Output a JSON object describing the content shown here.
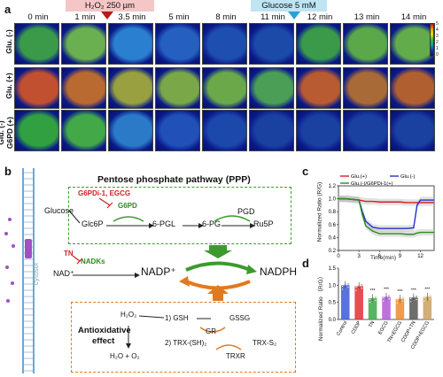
{
  "panel_a": {
    "label": "a",
    "h2o2_label": "H₂O₂ 250 µm",
    "glucose_label": "Glucose 5 mM",
    "time_labels": [
      "0 min",
      "1 min",
      "3.5 min",
      "5 min",
      "8 min",
      "11 min",
      "12 min",
      "13 min",
      "14 min"
    ],
    "row_labels": [
      "Glu. (-)",
      "Glu. (+)",
      "Glu. (-) G6PD (+)"
    ],
    "row_label_lines": [
      [
        "Glu. (-)"
      ],
      [
        "Glu. (+)"
      ],
      [
        "Glu. (-)",
        "G6PD (+)"
      ]
    ],
    "colorbar_ticks": [
      "5",
      "4",
      "3",
      "2",
      "1",
      "0"
    ],
    "colors": {
      "h2o2_box": "#f4c6c6",
      "glucose_box": "#bfe4f2",
      "arrow_red": "#b51c1c",
      "arrow_blue": "#2aa0d8"
    }
  },
  "panel_b": {
    "label": "b",
    "cytosol": "cytosol",
    "ppp_title": "Pentose phosphate pathway (PPP)",
    "glucose": "Glucose",
    "inhibitor": "G6PDi-1, EGCG",
    "g6pd": "G6PD",
    "glc6p": "Glc6P",
    "pgl": "6-PGL",
    "pg": "6-PG",
    "pgd": "PGD",
    "ru5p": "Ru5P",
    "tn": "TN",
    "nadks": "NADKs",
    "nad": "NAD⁺",
    "nadp": "NADP⁺",
    "nadph": "NADPH",
    "antiox": [
      "Antioxidative",
      "effect"
    ],
    "h2o2": "H₂O₂",
    "h2o_o2": "H₂O + O₂",
    "gsh": "1) GSH",
    "trx": "2) TRX-(SH)₂",
    "gr": "GR",
    "gssg": "GSSG",
    "trxr": "TRXR",
    "trxs2": "TRX-S₂"
  },
  "panel_c": {
    "label": "c",
    "ylabel": "Normalized Ratio (R/G)",
    "xlabel": "Time(min)",
    "legend": [
      "Glu.(+)",
      "Glu.(-)",
      "Glu.(-)/G6PDi-1(+)"
    ],
    "yticks": [
      "1.2",
      "1.0",
      "0.8",
      "0.6",
      "0.4",
      "0.2"
    ],
    "xticks": [
      "0",
      "3",
      "6",
      "9",
      "12"
    ]
  },
  "panel_d": {
    "label": "d",
    "ylabel": "Normalized Ratio （R/G）",
    "yticks": [
      "1.5",
      "1.0",
      "0.5",
      "0.0"
    ],
    "stars": "***"
  },
  "chart_data": [
    {
      "type": "line",
      "x": [
        0,
        1,
        2,
        3,
        3.5,
        4,
        5,
        6,
        7,
        8,
        9,
        10,
        11,
        11.5,
        12,
        13,
        14
      ],
      "xlim": [
        0,
        14
      ],
      "ylim": [
        0.2,
        1.2
      ],
      "series": [
        {
          "name": "Glu.(+)",
          "color": "#d21f1f",
          "values": [
            1.0,
            1.0,
            0.99,
            0.98,
            0.97,
            0.96,
            0.96,
            0.95,
            0.95,
            0.95,
            0.95,
            0.94,
            0.94,
            0.94,
            0.94,
            0.94,
            0.94
          ]
        },
        {
          "name": "Glu.(-)",
          "color": "#2432c8",
          "values": [
            1.0,
            1.0,
            0.99,
            0.98,
            0.8,
            0.65,
            0.56,
            0.54,
            0.54,
            0.54,
            0.54,
            0.54,
            0.55,
            0.9,
            0.98,
            0.98,
            0.98
          ]
        },
        {
          "name": "Glu.(-)/G6PDi-1(+)",
          "color": "#2f8a1e",
          "values": [
            1.0,
            1.0,
            0.99,
            0.98,
            0.75,
            0.58,
            0.5,
            0.46,
            0.46,
            0.46,
            0.46,
            0.45,
            0.45,
            0.47,
            0.48,
            0.48,
            0.48
          ]
        }
      ]
    },
    {
      "type": "bar",
      "categories": [
        "Control",
        "CDDP",
        "TN",
        "EGCG",
        "TN+EGCG",
        "CDDP+TN",
        "CDDP+EGCG"
      ],
      "values": [
        1.0,
        0.97,
        0.62,
        0.66,
        0.6,
        0.64,
        0.66
      ],
      "colors": [
        "#3b5bd9",
        "#e03030",
        "#3ca84a",
        "#b05ad8",
        "#f08a2a",
        "#555555",
        "#caa060"
      ],
      "ylim": [
        0,
        1.5
      ]
    }
  ]
}
